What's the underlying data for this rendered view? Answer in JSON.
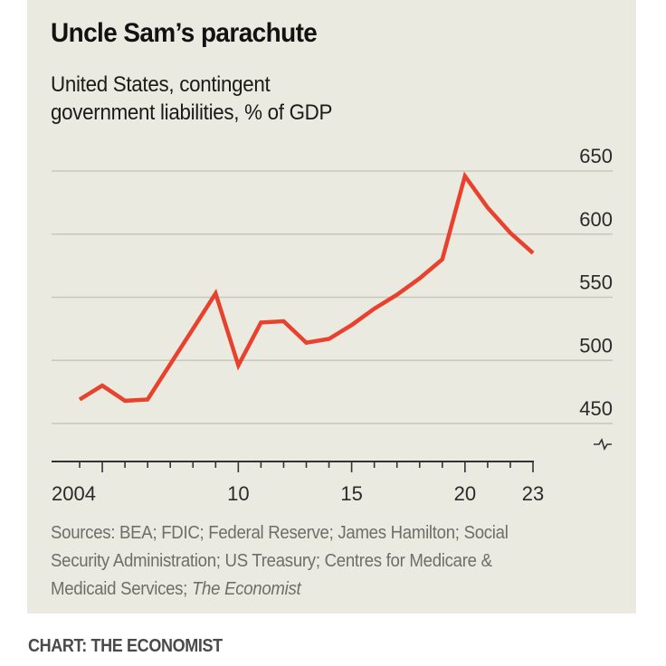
{
  "header": {
    "title": "Uncle Sam’s parachute",
    "subtitle_lines": [
      "United States, contingent",
      "government liabilities, % of GDP"
    ]
  },
  "footer": {
    "sources_lines": [
      "Sources: BEA; FDIC; Federal Reserve; James Hamilton; Social",
      "Security Administration; US Treasury; Centres for Medicare &"
    ],
    "sources_last_line_prefix": "Medicaid Services; ",
    "sources_last_line_italic": "The Economist",
    "credit": "CHART: THE ECONOMIST"
  },
  "colors": {
    "background": "#ebeae0",
    "line": "#e8412d",
    "gridline": "#c8c7bc",
    "axis": "#333333",
    "text": "#1a1a1a"
  },
  "chart_data": {
    "type": "line",
    "title": "Uncle Sam’s parachute",
    "subtitle": "United States, contingent government liabilities, % of GDP",
    "xlabel": "",
    "ylabel": "% of GDP",
    "x": [
      2003,
      2004,
      2005,
      2006,
      2007,
      2008,
      2009,
      2010,
      2011,
      2012,
      2013,
      2014,
      2015,
      2016,
      2017,
      2018,
      2019,
      2020,
      2021,
      2022,
      2023
    ],
    "series": [
      {
        "name": "Contingent government liabilities",
        "values": [
          469,
          480,
          468,
          469,
          497,
          525,
          553,
          496,
          530,
          531,
          514,
          517,
          528,
          541,
          552,
          565,
          580,
          646,
          621,
          601,
          585
        ]
      }
    ],
    "xlim": [
      2003,
      2023
    ],
    "ylim": [
      450,
      650
    ],
    "y_ticks": [
      450,
      500,
      550,
      600,
      650
    ],
    "y_tick_labels": [
      "450",
      "500",
      "550",
      "600",
      "650"
    ],
    "y_axis_position": "right",
    "y_axis_break": true,
    "x_major_ticks": [
      2004,
      2010,
      2015,
      2020,
      2023
    ],
    "x_tick_labels": [
      "2004",
      "10",
      "15",
      "20",
      "23"
    ],
    "x_minor_ticks": [
      2003,
      2004,
      2005,
      2006,
      2007,
      2008,
      2009,
      2010,
      2011,
      2012,
      2013,
      2014,
      2015,
      2016,
      2017,
      2018,
      2019,
      2020,
      2021,
      2022,
      2023
    ],
    "grid": true,
    "legend": "none"
  }
}
